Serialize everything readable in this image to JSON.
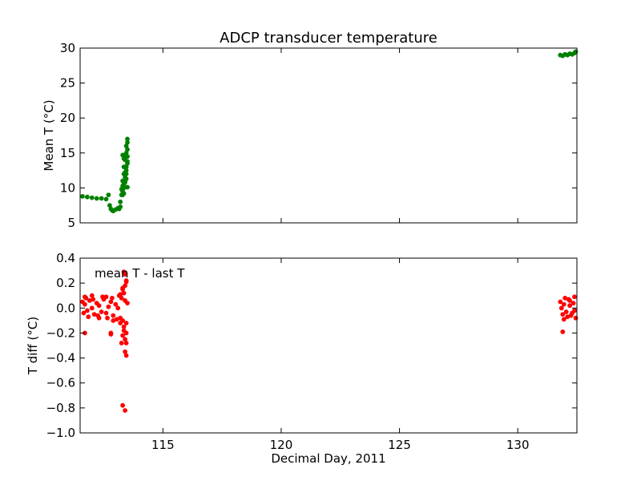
{
  "chart_data": [
    {
      "type": "scatter",
      "title": "ADCP transducer temperature",
      "xlabel": "",
      "ylabel": "Mean T (°C)",
      "xlim": [
        111.5,
        132.5
      ],
      "ylim": [
        5,
        30
      ],
      "yticks": [
        "5",
        "10",
        "15",
        "20",
        "25",
        "30"
      ],
      "xticks": [],
      "grid": false,
      "series": [
        {
          "color": "#008000",
          "x": [
            111.6,
            111.8,
            112.0,
            112.2,
            112.4,
            112.6,
            112.7,
            112.75,
            112.8,
            112.85,
            112.9,
            113.0,
            113.1,
            113.15,
            113.2,
            113.2,
            113.25,
            113.3,
            113.3,
            113.35,
            113.35,
            113.4,
            113.4,
            113.45,
            113.45,
            113.5,
            113.5,
            113.5,
            113.45,
            113.4,
            113.35,
            113.3,
            113.3,
            113.35,
            113.4,
            113.45,
            113.5,
            113.5,
            113.45,
            113.4,
            113.35,
            113.3,
            113.25,
            113.3,
            113.35,
            113.4,
            113.45,
            113.5,
            113.5,
            131.8,
            131.9,
            132.0,
            132.1,
            132.2,
            132.3,
            132.4,
            132.45
          ],
          "y": [
            8.8,
            8.7,
            8.6,
            8.5,
            8.5,
            8.4,
            9.0,
            7.5,
            7.0,
            6.8,
            6.7,
            6.9,
            7.1,
            7.0,
            7.3,
            8.0,
            9.0,
            10.0,
            11.0,
            12.0,
            13.0,
            14.0,
            14.5,
            15.0,
            16.0,
            16.5,
            17.0,
            13.5,
            12.0,
            11.0,
            10.0,
            9.5,
            9.0,
            10.5,
            11.5,
            12.5,
            14.5,
            15.5,
            13.0,
            10.8,
            14.2,
            14.7,
            9.8,
            10.3,
            9.2,
            12.2,
            11.3,
            10.1,
            13.8,
            29.0,
            28.9,
            29.1,
            29.0,
            29.2,
            29.1,
            29.3,
            29.5
          ]
        }
      ]
    },
    {
      "type": "scatter",
      "title": "",
      "xlabel": "Decimal Day, 2011",
      "ylabel": "T diff (°C)",
      "xlim": [
        111.5,
        132.5
      ],
      "ylim": [
        -1.0,
        0.4
      ],
      "yticks": [
        "−1.0",
        "−0.8",
        "−0.6",
        "−0.4",
        "−0.2",
        "0.0",
        "0.2",
        "0.4"
      ],
      "xticks": [
        "115",
        "120",
        "125",
        "130"
      ],
      "xtick_values": [
        115,
        120,
        125,
        130
      ],
      "grid": false,
      "annotation": "mean T - last T",
      "series": [
        {
          "color": "#ff0000",
          "x": [
            111.6,
            111.7,
            111.8,
            111.9,
            112.0,
            112.1,
            112.2,
            112.3,
            112.4,
            112.5,
            112.6,
            112.7,
            112.8,
            112.9,
            113.0,
            113.1,
            113.2,
            113.25,
            113.3,
            113.35,
            113.4,
            113.45,
            113.5,
            111.65,
            111.75,
            111.85,
            112.05,
            112.25,
            112.45,
            112.65,
            112.85,
            113.05,
            113.15,
            111.7,
            112.0,
            112.3,
            112.6,
            112.9,
            113.2,
            113.3,
            113.4,
            113.45,
            113.3,
            113.4,
            113.35,
            113.35,
            113.45,
            113.45,
            113.3,
            113.25,
            113.4,
            111.7,
            112.8,
            112.8,
            113.2,
            113.3,
            113.4,
            113.35,
            113.45,
            113.4,
            113.45,
            131.8,
            131.9,
            132.0,
            132.1,
            132.2,
            132.3,
            132.4,
            132.45,
            131.85,
            131.95,
            132.05,
            132.15,
            132.25,
            132.35,
            131.9,
            132.2,
            132.4,
            131.95
          ],
          "y": [
            0.05,
            0.03,
            -0.02,
            0.06,
            0.0,
            -0.05,
            0.04,
            0.02,
            -0.03,
            0.07,
            -0.04,
            0.01,
            0.05,
            -0.06,
            0.03,
            0.0,
            -0.08,
            0.08,
            -0.1,
            0.12,
            0.06,
            -0.12,
            0.04,
            -0.04,
            0.08,
            -0.07,
            0.07,
            -0.06,
            0.09,
            -0.08,
            0.08,
            -0.09,
            0.1,
            0.09,
            0.1,
            -0.08,
            0.09,
            -0.1,
            0.11,
            0.16,
            0.18,
            0.22,
            0.15,
            0.27,
            0.29,
            -0.18,
            -0.2,
            -0.28,
            -0.22,
            -0.28,
            -0.35,
            -0.2,
            -0.2,
            -0.21,
            -0.12,
            -0.78,
            -0.82,
            -0.15,
            -0.38,
            -0.25,
            0.21,
            0.05,
            -0.05,
            0.08,
            -0.07,
            0.06,
            -0.04,
            0.09,
            -0.08,
            0.0,
            0.03,
            -0.03,
            0.07,
            -0.06,
            0.04,
            -0.19,
            0.02,
            -0.02,
            -0.09
          ]
        }
      ]
    }
  ]
}
